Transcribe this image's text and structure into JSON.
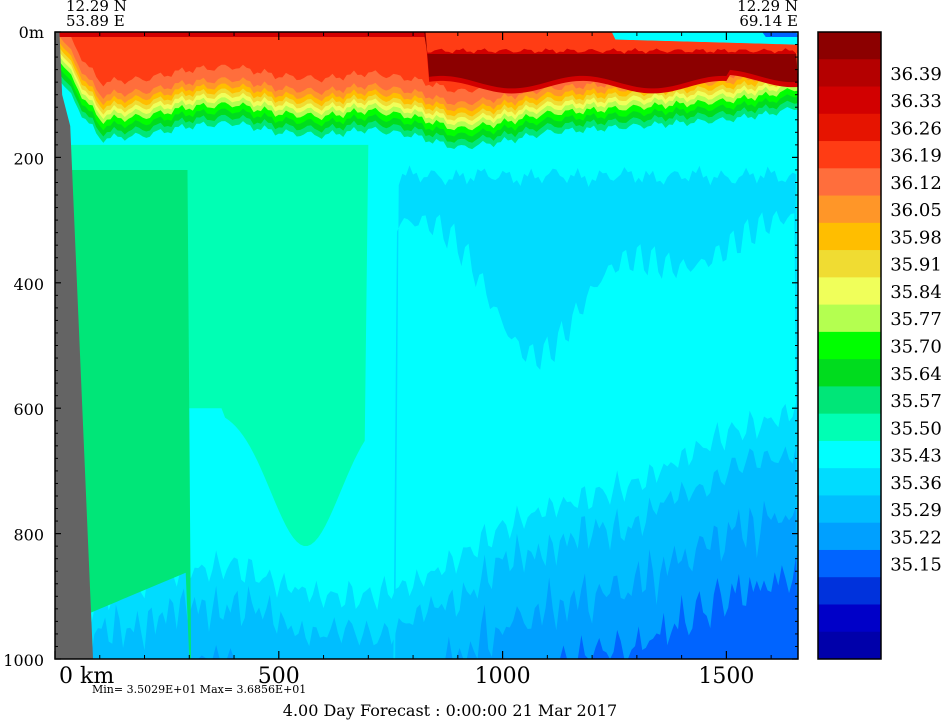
{
  "chart_data": {
    "type": "heatmap",
    "title": "",
    "left_coord": {
      "lat": "12.29 N",
      "lon": "53.89 E"
    },
    "right_coord": {
      "lat": "12.29 N",
      "lon": "69.14 E"
    },
    "x_axis": {
      "unit_label": "km",
      "ticks": [
        0,
        500,
        1000,
        1500
      ],
      "tick_labels": [
        "0",
        "500",
        "1000",
        "1500"
      ],
      "range": [
        0,
        1660
      ]
    },
    "y_axis": {
      "unit_label": "m",
      "ticks": [
        0,
        200,
        400,
        600,
        800,
        1000
      ],
      "tick_labels": [
        "0m",
        "200",
        "400",
        "600",
        "800",
        "1000"
      ],
      "range": [
        0,
        1000
      ],
      "inverted": true
    },
    "stats_text": "Min= 3.5029E+01  Max= 3.6856E+01",
    "footer_text": "4.00 Day Forecast :  0:00:00  21 Mar 2017",
    "colorbar": {
      "labels": [
        "36.39",
        "36.33",
        "36.26",
        "36.19",
        "36.12",
        "36.05",
        "35.98",
        "35.91",
        "35.84",
        "35.77",
        "35.70",
        "35.64",
        "35.57",
        "35.50",
        "35.43",
        "35.36",
        "35.29",
        "35.22",
        "35.15"
      ],
      "colors": [
        "#8c0000",
        "#b40000",
        "#d20000",
        "#e61400",
        "#ff3c14",
        "#ff6e3c",
        "#ff9628",
        "#ffbe00",
        "#f0dc32",
        "#f0ff5a",
        "#b4ff50",
        "#00ff00",
        "#00dc1e",
        "#00e678",
        "#00ffb4",
        "#00ffff",
        "#00dcff",
        "#00beff",
        "#00a0ff",
        "#0064ff",
        "#0032dc",
        "#0000c8",
        "#0000aa"
      ]
    },
    "profiles": {
      "km": [
        0,
        50,
        100,
        200,
        300,
        400,
        500,
        600,
        700,
        800,
        900,
        1000,
        1100,
        1200,
        1300,
        1400,
        1500,
        1600,
        1660
      ],
      "mixed_layer_bottom_m": [
        60,
        120,
        170,
        165,
        150,
        145,
        160,
        165,
        155,
        165,
        185,
        175,
        160,
        155,
        150,
        145,
        140,
        130,
        120
      ],
      "high_salinity_core_top_m": [
        20,
        20,
        20,
        20,
        20,
        20,
        20,
        20,
        20,
        20,
        20,
        20,
        20,
        20,
        20,
        20,
        20,
        20,
        20
      ],
      "deep_fresher_top_m": [
        1000,
        980,
        900,
        880,
        860,
        850,
        880,
        900,
        900,
        880,
        840,
        790,
        760,
        740,
        720,
        680,
        640,
        620,
        600
      ]
    }
  }
}
